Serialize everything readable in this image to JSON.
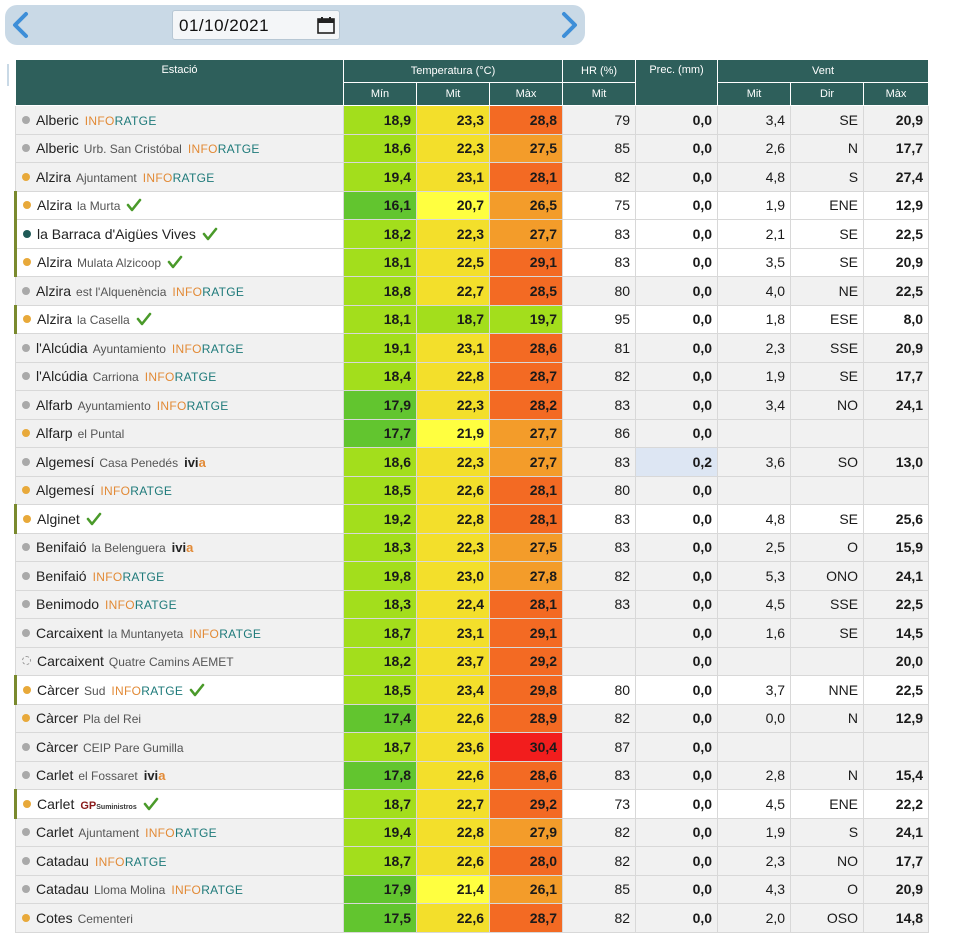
{
  "date": {
    "value": "01/10/2021"
  },
  "icons": {
    "prev": "chevron-left-icon",
    "next": "chevron-right-icon",
    "calendar": "calendar-icon",
    "check": "checkmark-icon"
  },
  "colors": {
    "header_bg": "#2e5f5b",
    "temp_green_dark": "#62c52f",
    "temp_green": "#a3de1c",
    "temp_yellow": "#f3df2b",
    "temp_yellow_bright": "#ffff40",
    "temp_orange": "#f39c2a",
    "temp_orange_red": "#f36a23",
    "temp_red": "#f21d1d",
    "rain_bg": "#dde6f3"
  },
  "headers": {
    "station": "Estació",
    "temperature": "Temperatura (°C)",
    "hr": "HR (%)",
    "prec": "Prec. (mm)",
    "wind": "Vent",
    "min": "Mín",
    "mit": "Mit",
    "max": "Màx",
    "hr_mit": "Mit",
    "wind_mit": "Mit",
    "wind_dir": "Dir",
    "wind_max": "Màx"
  },
  "logos": {
    "info1": "INFO",
    "info2": "RATGE",
    "ivia1": "ivi",
    "ivia2": "a",
    "gp": "GP",
    "gp_sub": "Suministros"
  },
  "rows": [
    {
      "name": "Alberic",
      "sub": "",
      "logo": "info",
      "dot": "gray",
      "check": false,
      "sel": false,
      "tmin": "18,9",
      "tmit": "23,3",
      "tmax": "28,8",
      "cmin": "#a3de1c",
      "cmit": "#f3df2b",
      "cmax": "#f36a23",
      "hr": "79",
      "prec": "0,0",
      "wmit": "3,4",
      "wdir": "SE",
      "wmax": "20,9"
    },
    {
      "name": "Alberic",
      "sub": "Urb. San Cristóbal",
      "logo": "info",
      "dot": "gray",
      "check": false,
      "sel": false,
      "tmin": "18,6",
      "tmit": "22,3",
      "tmax": "27,5",
      "cmin": "#a3de1c",
      "cmit": "#f3df2b",
      "cmax": "#f39c2a",
      "hr": "85",
      "prec": "0,0",
      "wmit": "2,6",
      "wdir": "N",
      "wmax": "17,7"
    },
    {
      "name": "Alzira",
      "sub": "Ajuntament",
      "logo": "info",
      "dot": "orange",
      "check": false,
      "sel": false,
      "tmin": "19,4",
      "tmit": "23,1",
      "tmax": "28,1",
      "cmin": "#a3de1c",
      "cmit": "#f3df2b",
      "cmax": "#f36a23",
      "hr": "82",
      "prec": "0,0",
      "wmit": "4,8",
      "wdir": "S",
      "wmax": "27,4"
    },
    {
      "name": "Alzira",
      "sub": "la Murta",
      "logo": "",
      "dot": "orange",
      "check": true,
      "sel": true,
      "tmin": "16,1",
      "tmit": "20,7",
      "tmax": "26,5",
      "cmin": "#62c52f",
      "cmit": "#ffff40",
      "cmax": "#f39c2a",
      "hr": "75",
      "prec": "0,0",
      "wmit": "1,9",
      "wdir": "ENE",
      "wmax": "12,9"
    },
    {
      "name": "la Barraca d'Aigües Vives",
      "sub": "",
      "logo": "",
      "dot": "teal",
      "check": true,
      "sel": true,
      "tmin": "18,2",
      "tmit": "22,3",
      "tmax": "27,7",
      "cmin": "#a3de1c",
      "cmit": "#f3df2b",
      "cmax": "#f39c2a",
      "hr": "83",
      "prec": "0,0",
      "wmit": "2,1",
      "wdir": "SE",
      "wmax": "22,5"
    },
    {
      "name": "Alzira",
      "sub": "Mulata Alzicoop",
      "logo": "",
      "dot": "orange",
      "check": true,
      "sel": true,
      "tmin": "18,1",
      "tmit": "22,5",
      "tmax": "29,1",
      "cmin": "#a3de1c",
      "cmit": "#f3df2b",
      "cmax": "#f36a23",
      "hr": "83",
      "prec": "0,0",
      "wmit": "3,5",
      "wdir": "SE",
      "wmax": "20,9"
    },
    {
      "name": "Alzira",
      "sub": "est l'Alquenència",
      "logo": "info",
      "dot": "gray",
      "check": false,
      "sel": false,
      "tmin": "18,8",
      "tmit": "22,7",
      "tmax": "28,5",
      "cmin": "#a3de1c",
      "cmit": "#f3df2b",
      "cmax": "#f36a23",
      "hr": "80",
      "prec": "0,0",
      "wmit": "4,0",
      "wdir": "NE",
      "wmax": "22,5"
    },
    {
      "name": "Alzira",
      "sub": "la Casella",
      "logo": "",
      "dot": "orange",
      "check": true,
      "sel": true,
      "tmin": "18,1",
      "tmit": "18,7",
      "tmax": "19,7",
      "cmin": "#a3de1c",
      "cmit": "#a3de1c",
      "cmax": "#a3de1c",
      "hr": "95",
      "prec": "0,0",
      "wmit": "1,8",
      "wdir": "ESE",
      "wmax": "8,0"
    },
    {
      "name": "l'Alcúdia",
      "sub": "Ayuntamiento",
      "logo": "info",
      "dot": "gray",
      "check": false,
      "sel": false,
      "tmin": "19,1",
      "tmit": "23,1",
      "tmax": "28,6",
      "cmin": "#a3de1c",
      "cmit": "#f3df2b",
      "cmax": "#f36a23",
      "hr": "81",
      "prec": "0,0",
      "wmit": "2,3",
      "wdir": "SSE",
      "wmax": "20,9"
    },
    {
      "name": "l'Alcúdia",
      "sub": "Carriona",
      "logo": "info",
      "dot": "gray",
      "check": false,
      "sel": false,
      "tmin": "18,4",
      "tmit": "22,8",
      "tmax": "28,7",
      "cmin": "#a3de1c",
      "cmit": "#f3df2b",
      "cmax": "#f36a23",
      "hr": "82",
      "prec": "0,0",
      "wmit": "1,9",
      "wdir": "SE",
      "wmax": "17,7"
    },
    {
      "name": "Alfarb",
      "sub": "Ayuntamiento",
      "logo": "info",
      "dot": "gray",
      "check": false,
      "sel": false,
      "tmin": "17,9",
      "tmit": "22,3",
      "tmax": "28,2",
      "cmin": "#62c52f",
      "cmit": "#f3df2b",
      "cmax": "#f36a23",
      "hr": "83",
      "prec": "0,0",
      "wmit": "3,4",
      "wdir": "NO",
      "wmax": "24,1"
    },
    {
      "name": "Alfarp",
      "sub": "el Puntal",
      "logo": "",
      "dot": "orange",
      "check": false,
      "sel": false,
      "tmin": "17,7",
      "tmit": "21,9",
      "tmax": "27,7",
      "cmin": "#62c52f",
      "cmit": "#ffff40",
      "cmax": "#f39c2a",
      "hr": "86",
      "prec": "0,0",
      "wmit": "",
      "wdir": "",
      "wmax": ""
    },
    {
      "name": "Algemesí",
      "sub": "Casa Penedés",
      "logo": "ivia",
      "dot": "gray",
      "check": false,
      "sel": false,
      "tmin": "18,6",
      "tmit": "22,3",
      "tmax": "27,7",
      "cmin": "#a3de1c",
      "cmit": "#f3df2b",
      "cmax": "#f39c2a",
      "hr": "83",
      "prec": "0,2",
      "wmit": "3,6",
      "wdir": "SO",
      "wmax": "13,0"
    },
    {
      "name": "Algemesí",
      "sub": "",
      "logo": "info",
      "dot": "orange",
      "check": false,
      "sel": false,
      "tmin": "18,5",
      "tmit": "22,6",
      "tmax": "28,1",
      "cmin": "#a3de1c",
      "cmit": "#f3df2b",
      "cmax": "#f36a23",
      "hr": "80",
      "prec": "0,0",
      "wmit": "",
      "wdir": "",
      "wmax": ""
    },
    {
      "name": "Alginet",
      "sub": "",
      "logo": "",
      "dot": "orange",
      "check": true,
      "sel": true,
      "tmin": "19,2",
      "tmit": "22,8",
      "tmax": "28,1",
      "cmin": "#a3de1c",
      "cmit": "#f3df2b",
      "cmax": "#f36a23",
      "hr": "83",
      "prec": "0,0",
      "wmit": "4,8",
      "wdir": "SE",
      "wmax": "25,6"
    },
    {
      "name": "Benifaió",
      "sub": "la Belenguera",
      "logo": "ivia",
      "dot": "gray",
      "check": false,
      "sel": false,
      "tmin": "18,3",
      "tmit": "22,3",
      "tmax": "27,5",
      "cmin": "#a3de1c",
      "cmit": "#f3df2b",
      "cmax": "#f39c2a",
      "hr": "83",
      "prec": "0,0",
      "wmit": "2,5",
      "wdir": "O",
      "wmax": "15,9"
    },
    {
      "name": "Benifaió",
      "sub": "",
      "logo": "info",
      "dot": "gray",
      "check": false,
      "sel": false,
      "tmin": "19,8",
      "tmit": "23,0",
      "tmax": "27,8",
      "cmin": "#a3de1c",
      "cmit": "#f3df2b",
      "cmax": "#f39c2a",
      "hr": "82",
      "prec": "0,0",
      "wmit": "5,3",
      "wdir": "ONO",
      "wmax": "24,1"
    },
    {
      "name": "Benimodo",
      "sub": "",
      "logo": "info",
      "dot": "gray",
      "check": false,
      "sel": false,
      "tmin": "18,3",
      "tmit": "22,4",
      "tmax": "28,1",
      "cmin": "#a3de1c",
      "cmit": "#f3df2b",
      "cmax": "#f36a23",
      "hr": "83",
      "prec": "0,0",
      "wmit": "4,5",
      "wdir": "SSE",
      "wmax": "22,5"
    },
    {
      "name": "Carcaixent",
      "sub": "la Muntanyeta",
      "logo": "info",
      "dot": "gray",
      "check": false,
      "sel": false,
      "tmin": "18,7",
      "tmit": "23,1",
      "tmax": "29,1",
      "cmin": "#a3de1c",
      "cmit": "#f3df2b",
      "cmax": "#f36a23",
      "hr": "",
      "prec": "0,0",
      "wmit": "1,6",
      "wdir": "SE",
      "wmax": "14,5"
    },
    {
      "name": "Carcaixent",
      "sub": "Quatre Camins AEMET",
      "logo": "",
      "dot": "dashed",
      "check": false,
      "sel": false,
      "tmin": "18,2",
      "tmit": "23,7",
      "tmax": "29,2",
      "cmin": "#a3de1c",
      "cmit": "#f3df2b",
      "cmax": "#f36a23",
      "hr": "",
      "prec": "0,0",
      "wmit": "",
      "wdir": "",
      "wmax": "20,0"
    },
    {
      "name": "Càrcer",
      "sub": "Sud",
      "logo": "info",
      "dot": "orange",
      "check": true,
      "sel": true,
      "tmin": "18,5",
      "tmit": "23,4",
      "tmax": "29,8",
      "cmin": "#a3de1c",
      "cmit": "#f3df2b",
      "cmax": "#f36a23",
      "hr": "80",
      "prec": "0,0",
      "wmit": "3,7",
      "wdir": "NNE",
      "wmax": "22,5"
    },
    {
      "name": "Càrcer",
      "sub": "Pla del Rei",
      "logo": "",
      "dot": "orange",
      "check": false,
      "sel": false,
      "tmin": "17,4",
      "tmit": "22,6",
      "tmax": "28,9",
      "cmin": "#62c52f",
      "cmit": "#f3df2b",
      "cmax": "#f36a23",
      "hr": "82",
      "prec": "0,0",
      "wmit": "0,0",
      "wdir": "N",
      "wmax": "12,9"
    },
    {
      "name": "Càrcer",
      "sub": "CEIP Pare Gumilla",
      "logo": "",
      "dot": "gray",
      "check": false,
      "sel": false,
      "tmin": "18,7",
      "tmit": "23,6",
      "tmax": "30,4",
      "cmin": "#a3de1c",
      "cmit": "#f3df2b",
      "cmax": "#f21d1d",
      "hr": "87",
      "prec": "0,0",
      "wmit": "",
      "wdir": "",
      "wmax": ""
    },
    {
      "name": "Carlet",
      "sub": "el Fossaret",
      "logo": "ivia",
      "dot": "gray",
      "check": false,
      "sel": false,
      "tmin": "17,8",
      "tmit": "22,6",
      "tmax": "28,6",
      "cmin": "#62c52f",
      "cmit": "#f3df2b",
      "cmax": "#f36a23",
      "hr": "83",
      "prec": "0,0",
      "wmit": "2,8",
      "wdir": "N",
      "wmax": "15,4"
    },
    {
      "name": "Carlet",
      "sub": "",
      "logo": "gp",
      "dot": "orange",
      "check": true,
      "sel": true,
      "tmin": "18,7",
      "tmit": "22,7",
      "tmax": "29,2",
      "cmin": "#a3de1c",
      "cmit": "#f3df2b",
      "cmax": "#f36a23",
      "hr": "73",
      "prec": "0,0",
      "wmit": "4,5",
      "wdir": "ENE",
      "wmax": "22,2"
    },
    {
      "name": "Carlet",
      "sub": "Ajuntament",
      "logo": "info",
      "dot": "gray",
      "check": false,
      "sel": false,
      "tmin": "19,4",
      "tmit": "22,8",
      "tmax": "27,9",
      "cmin": "#a3de1c",
      "cmit": "#f3df2b",
      "cmax": "#f39c2a",
      "hr": "82",
      "prec": "0,0",
      "wmit": "1,9",
      "wdir": "S",
      "wmax": "24,1"
    },
    {
      "name": "Catadau",
      "sub": "",
      "logo": "info",
      "dot": "gray",
      "check": false,
      "sel": false,
      "tmin": "18,7",
      "tmit": "22,6",
      "tmax": "28,0",
      "cmin": "#a3de1c",
      "cmit": "#f3df2b",
      "cmax": "#f36a23",
      "hr": "82",
      "prec": "0,0",
      "wmit": "2,3",
      "wdir": "NO",
      "wmax": "17,7"
    },
    {
      "name": "Catadau",
      "sub": "Lloma Molina",
      "logo": "info",
      "dot": "gray",
      "check": false,
      "sel": false,
      "tmin": "17,9",
      "tmit": "21,4",
      "tmax": "26,1",
      "cmin": "#62c52f",
      "cmit": "#ffff40",
      "cmax": "#f39c2a",
      "hr": "85",
      "prec": "0,0",
      "wmit": "4,3",
      "wdir": "O",
      "wmax": "20,9"
    },
    {
      "name": "Cotes",
      "sub": "Cementeri",
      "logo": "",
      "dot": "orange",
      "check": false,
      "sel": false,
      "tmin": "17,5",
      "tmit": "22,6",
      "tmax": "28,7",
      "cmin": "#62c52f",
      "cmit": "#f3df2b",
      "cmax": "#f36a23",
      "hr": "82",
      "prec": "0,0",
      "wmit": "2,0",
      "wdir": "OSO",
      "wmax": "14,8"
    }
  ]
}
